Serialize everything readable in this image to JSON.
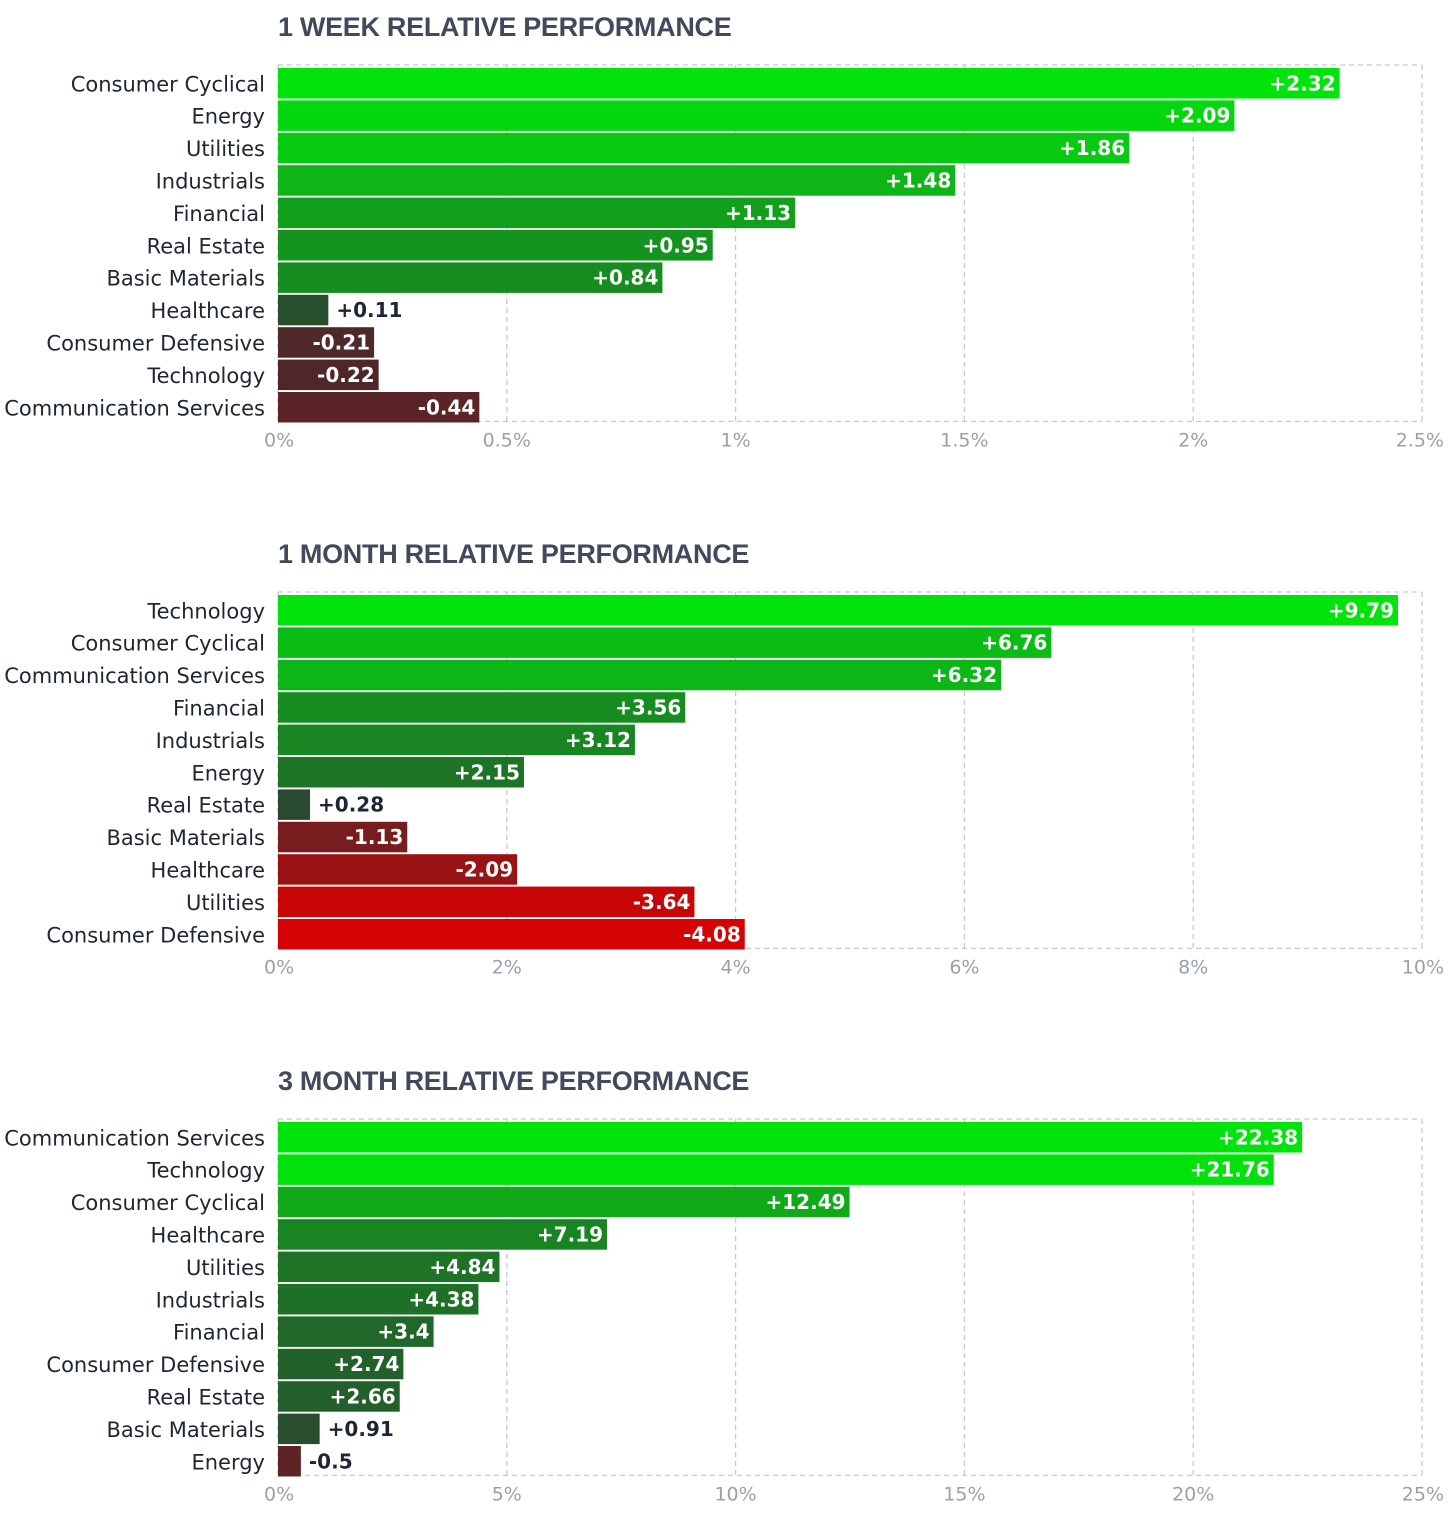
{
  "chart_data": [
    {
      "type": "bar",
      "orientation": "horizontal",
      "title": "1 WEEK RELATIVE PERFORMANCE",
      "categories": [
        "Consumer Cyclical",
        "Energy",
        "Utilities",
        "Industrials",
        "Financial",
        "Real Estate",
        "Basic Materials",
        "Healthcare",
        "Consumer Defensive",
        "Technology",
        "Communication Services"
      ],
      "values": [
        2.32,
        2.09,
        1.86,
        1.48,
        1.13,
        0.95,
        0.84,
        0.11,
        -0.21,
        -0.22,
        -0.44
      ],
      "value_labels": [
        "+2.32",
        "+2.09",
        "+1.86",
        "+1.48",
        "+1.13",
        "+0.95",
        "+0.84",
        "+0.11",
        "-0.21",
        "-0.22",
        "-0.44"
      ],
      "bar_length": "absolute value",
      "xlim": [
        0,
        2.5
      ],
      "x_ticks": [
        "0%",
        "0.5%",
        "1%",
        "1.5%",
        "2%",
        "2.5%"
      ],
      "grid": true,
      "legend": "none"
    },
    {
      "type": "bar",
      "orientation": "horizontal",
      "title": "1 MONTH RELATIVE PERFORMANCE",
      "categories": [
        "Technology",
        "Consumer Cyclical",
        "Communication Services",
        "Financial",
        "Industrials",
        "Energy",
        "Real Estate",
        "Basic Materials",
        "Healthcare",
        "Utilities",
        "Consumer Defensive"
      ],
      "values": [
        9.79,
        6.76,
        6.32,
        3.56,
        3.12,
        2.15,
        0.28,
        -1.13,
        -2.09,
        -3.64,
        -4.08
      ],
      "value_labels": [
        "+9.79",
        "+6.76",
        "+6.32",
        "+3.56",
        "+3.12",
        "+2.15",
        "+0.28",
        "-1.13",
        "-2.09",
        "-3.64",
        "-4.08"
      ],
      "bar_length": "absolute value",
      "xlim": [
        0,
        10
      ],
      "x_ticks": [
        "0%",
        "2%",
        "4%",
        "6%",
        "8%",
        "10%"
      ],
      "grid": true,
      "legend": "none"
    },
    {
      "type": "bar",
      "orientation": "horizontal",
      "title": "3 MONTH RELATIVE PERFORMANCE",
      "categories": [
        "Communication Services",
        "Technology",
        "Consumer Cyclical",
        "Healthcare",
        "Utilities",
        "Industrials",
        "Financial",
        "Consumer Defensive",
        "Real Estate",
        "Basic Materials",
        "Energy"
      ],
      "values": [
        22.38,
        21.76,
        12.49,
        7.19,
        4.84,
        4.38,
        3.4,
        2.74,
        2.66,
        0.91,
        -0.5
      ],
      "value_labels": [
        "+22.38",
        "+21.76",
        "+12.49",
        "+7.19",
        "+4.84",
        "+4.38",
        "+3.4",
        "+2.74",
        "+2.66",
        "+0.91",
        "-0.5"
      ],
      "bar_length": "absolute value",
      "xlim": [
        0,
        25
      ],
      "x_ticks": [
        "0%",
        "5%",
        "10%",
        "15%",
        "20%",
        "25%"
      ],
      "grid": true,
      "legend": "none"
    }
  ],
  "colors": {
    "positive_strong": "#00e40b",
    "positive_weak": "#2c3f33",
    "negative_weak": "#3f2c2e",
    "negative_strong": "#e00000",
    "title": "#414a5c",
    "category_text": "#1f2533",
    "tick_text": "#9aa0ab",
    "grid": "#c6c9d0"
  }
}
